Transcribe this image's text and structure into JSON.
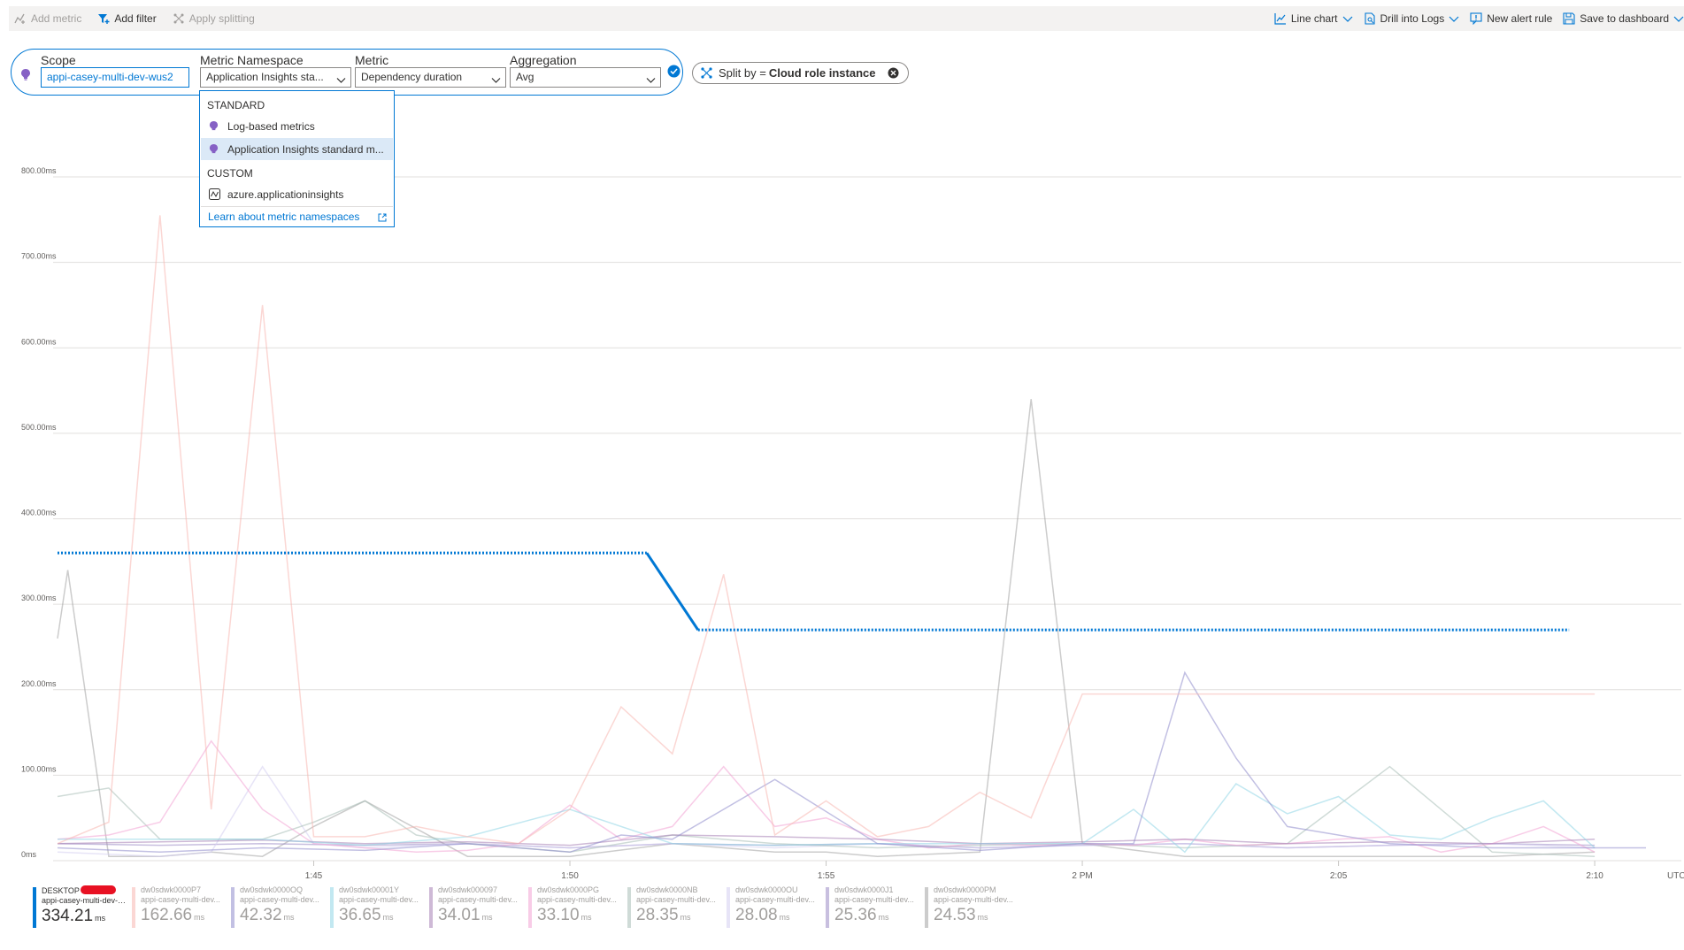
{
  "toolbar": {
    "left": [
      {
        "label": "Add metric",
        "icon": "add-metric-icon",
        "enabled": false
      },
      {
        "label": "Add filter",
        "icon": "filter-icon",
        "enabled": true
      },
      {
        "label": "Apply splitting",
        "icon": "splitting-icon",
        "enabled": false
      }
    ],
    "right": [
      {
        "label": "Line chart",
        "icon": "line-chart-icon",
        "chevron": true
      },
      {
        "label": "Drill into Logs",
        "icon": "logs-icon",
        "chevron": true
      },
      {
        "label": "New alert rule",
        "icon": "alert-icon",
        "chevron": false
      },
      {
        "label": "Save to dashboard",
        "icon": "save-icon",
        "chevron": true
      }
    ]
  },
  "picker": {
    "scope_label": "Scope",
    "scope_value": "appi-casey-multi-dev-wus2",
    "namespace_label": "Metric Namespace",
    "namespace_value": "Application Insights sta...",
    "metric_label": "Metric",
    "metric_value": "Dependency duration",
    "aggregation_label": "Aggregation",
    "aggregation_value": "Avg"
  },
  "split": {
    "prefix": "Split by =",
    "value": "Cloud role instance"
  },
  "namespace_dropdown": {
    "standard_header": "STANDARD",
    "standard_items": [
      {
        "label": "Log-based metrics",
        "icon": "app-insights-icon",
        "selected": false
      },
      {
        "label": "Application Insights standard m...",
        "icon": "app-insights-icon",
        "selected": true
      }
    ],
    "custom_header": "CUSTOM",
    "custom_items": [
      {
        "label": "azure.applicationinsights",
        "icon": "custom-metric-icon",
        "selected": false
      }
    ],
    "learn_link": "Learn about metric namespaces"
  },
  "chart_data": {
    "type": "line",
    "title": "",
    "xlabel": "",
    "ylabel": "",
    "y_unit": "ms",
    "ylim": [
      0,
      800
    ],
    "y_ticks": [
      0,
      100,
      200,
      300,
      400,
      500,
      600,
      700,
      800
    ],
    "y_tick_labels": [
      "0ms",
      "100.00ms",
      "200.00ms",
      "300.00ms",
      "400.00ms",
      "500.00ms",
      "600.00ms",
      "700.00ms",
      "800.00ms"
    ],
    "x_unit": "minutes after 1:40 PM",
    "xlim": [
      0,
      31
    ],
    "x_ticks": [
      5,
      10,
      15,
      20,
      25,
      30
    ],
    "x_tick_labels": [
      "1:45",
      "1:50",
      "1:55",
      "2 PM",
      "2:05",
      "2:10"
    ],
    "timezone_label": "UTC",
    "grid": true,
    "legend_position": "bottom",
    "series": [
      {
        "name": "DESKTOP",
        "sub": "appi-casey-multi-dev-wus2",
        "color": "#0078d4",
        "highlight": true,
        "value": "334.21",
        "unit": "ms",
        "x": [
          0,
          11.5,
          12.5,
          29.5
        ],
        "y": [
          360,
          360,
          270,
          270
        ],
        "dashed_x": [
          0,
          11.5,
          12.5,
          29.5
        ]
      },
      {
        "name": "dw0sdwk0000P7",
        "sub": "appi-casey-multi-dev...",
        "color": "#f7b7b1",
        "value": "162.66",
        "unit": "ms",
        "x": [
          0,
          1,
          2,
          3,
          4,
          5,
          6,
          7,
          8,
          9,
          10,
          11,
          12,
          13,
          14,
          15,
          16,
          17,
          18,
          19,
          20,
          21,
          22,
          23,
          24,
          25,
          26,
          27,
          28,
          29,
          30
        ],
        "y": [
          20,
          45,
          755,
          60,
          650,
          28,
          28,
          40,
          28,
          20,
          60,
          180,
          125,
          335,
          30,
          70,
          28,
          40,
          80,
          50,
          195,
          195,
          195,
          195,
          195,
          195,
          195,
          195,
          195,
          195,
          195
        ]
      },
      {
        "name": "dw0sdwk0000OQ",
        "sub": "appi-casey-multi-dev...",
        "color": "#8f8ccc",
        "value": "42.32",
        "unit": "ms",
        "x": [
          0,
          2,
          4,
          6,
          8,
          10,
          11,
          12,
          14,
          16,
          18,
          20,
          21,
          22,
          23,
          24,
          26,
          28,
          30,
          31
        ],
        "y": [
          15,
          10,
          15,
          12,
          20,
          10,
          30,
          25,
          95,
          20,
          12,
          20,
          20,
          220,
          120,
          40,
          20,
          15,
          15,
          15
        ]
      },
      {
        "name": "dw0sdwk00001Y",
        "sub": "appi-casey-multi-dev...",
        "color": "#8fd6e6",
        "value": "36.65",
        "unit": "ms",
        "x": [
          0,
          2,
          4,
          6,
          8,
          10,
          12,
          14,
          16,
          18,
          20,
          21,
          22,
          23,
          24,
          25,
          26,
          27,
          28,
          29,
          30
        ],
        "y": [
          25,
          25,
          25,
          18,
          28,
          60,
          20,
          18,
          20,
          20,
          20,
          60,
          10,
          90,
          55,
          75,
          30,
          25,
          50,
          70,
          15
        ]
      },
      {
        "name": "dw0sdwk000097",
        "sub": "appi-casey-multi-dev...",
        "color": "#a57fb5",
        "value": "34.01",
        "unit": "ms",
        "x": [
          0,
          2,
          4,
          6,
          8,
          10,
          12,
          14,
          16,
          18,
          20,
          22,
          24,
          26,
          28,
          30
        ],
        "y": [
          20,
          22,
          24,
          20,
          22,
          18,
          30,
          28,
          25,
          20,
          22,
          25,
          20,
          22,
          20,
          25
        ]
      },
      {
        "name": "dw0sdwk0000PG",
        "sub": "appi-casey-multi-dev...",
        "color": "#f2a3d3",
        "value": "33.10",
        "unit": "ms",
        "x": [
          0,
          1,
          2,
          3,
          4,
          5,
          6,
          7,
          8,
          9,
          10,
          11,
          12,
          13,
          14,
          15,
          16,
          17,
          18,
          19,
          20,
          21,
          22,
          23,
          24,
          25,
          26,
          27,
          28,
          29,
          30
        ],
        "y": [
          25,
          30,
          45,
          140,
          60,
          20,
          15,
          10,
          12,
          20,
          65,
          25,
          40,
          110,
          40,
          50,
          25,
          15,
          20,
          18,
          20,
          18,
          25,
          18,
          20,
          25,
          28,
          10,
          20,
          40,
          10
        ]
      },
      {
        "name": "dw0sdwk0000NB",
        "sub": "appi-casey-multi-dev...",
        "color": "#a8bdb6",
        "value": "28.35",
        "unit": "ms",
        "x": [
          0,
          1,
          2,
          4,
          5,
          6,
          7,
          8,
          10,
          12,
          14,
          16,
          18,
          20,
          22,
          24,
          26,
          28,
          30
        ],
        "y": [
          75,
          85,
          25,
          25,
          45,
          70,
          30,
          20,
          10,
          30,
          20,
          15,
          18,
          20,
          15,
          20,
          110,
          10,
          5
        ]
      },
      {
        "name": "dw0sdwk0000OU",
        "sub": "appi-casey-multi-dev...",
        "color": "#d4cdf0",
        "value": "28.08",
        "unit": "ms",
        "x": [
          0,
          2,
          3,
          4,
          5,
          6,
          8,
          10,
          12,
          14,
          16,
          18,
          20,
          22,
          24,
          26,
          28,
          30
        ],
        "y": [
          10,
          5,
          10,
          110,
          20,
          15,
          20,
          15,
          20,
          15,
          20,
          15,
          18,
          20,
          15,
          18,
          20,
          15
        ]
      },
      {
        "name": "dw0sdwk0000J1",
        "sub": "appi-casey-multi-dev...",
        "color": "#9b8ac4",
        "value": "25.36",
        "unit": "ms",
        "x": [
          0,
          2,
          4,
          6,
          8,
          10,
          12,
          14,
          16,
          18,
          20,
          22,
          24,
          26,
          28,
          30
        ],
        "y": [
          20,
          18,
          20,
          18,
          20,
          15,
          20,
          18,
          20,
          15,
          18,
          20,
          15,
          18,
          20,
          18
        ]
      },
      {
        "name": "dw0sdwk0000PM",
        "sub": "appi-casey-multi-dev...",
        "color": "#a3a3a3",
        "value": "24.53",
        "unit": "ms",
        "x": [
          0,
          0.2,
          1,
          2,
          3,
          4,
          5,
          6,
          8,
          10,
          12,
          14,
          15,
          16,
          18,
          19,
          20,
          22,
          24,
          26,
          28,
          30
        ],
        "y": [
          260,
          340,
          5,
          5,
          10,
          5,
          40,
          70,
          5,
          5,
          20,
          10,
          10,
          5,
          10,
          540,
          20,
          5,
          5,
          5,
          5,
          10
        ]
      }
    ]
  }
}
